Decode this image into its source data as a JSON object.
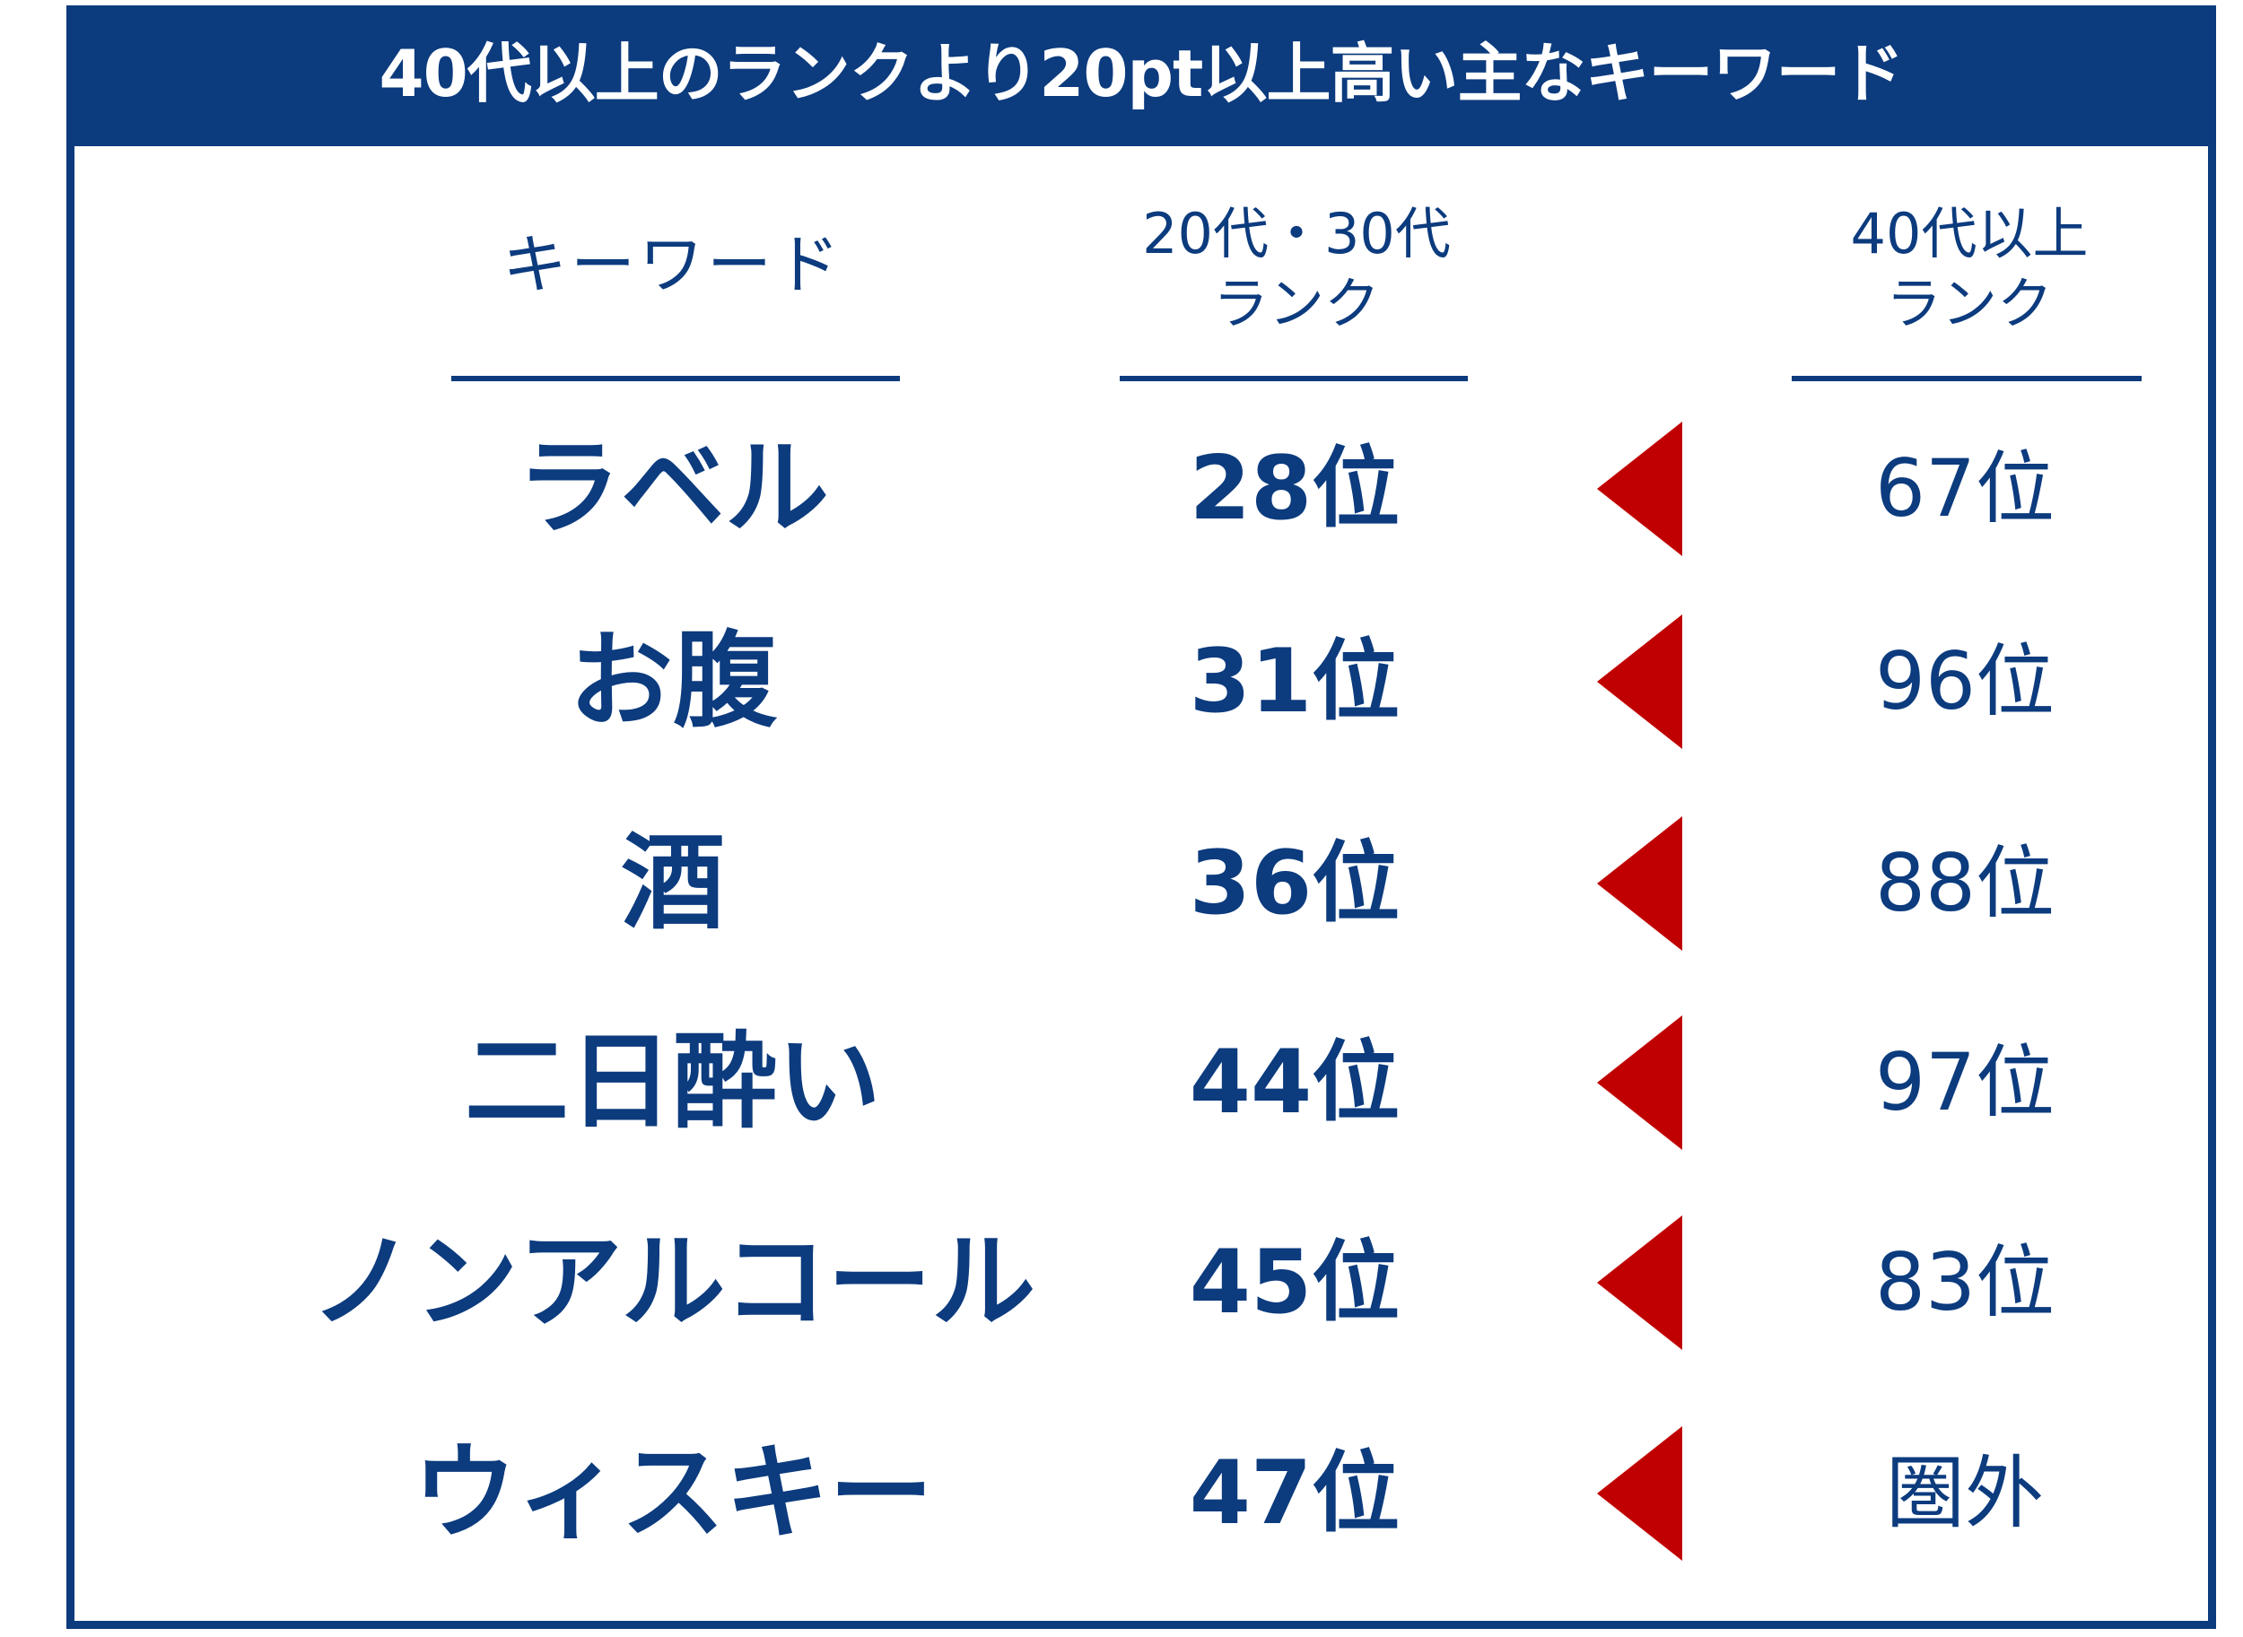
{
  "title": "40代以上のランクより20pt以上高い主なキーワード",
  "headers": {
    "keyword": "キーワード",
    "young_line1": "20代・30代",
    "young_line2": "ランク",
    "old_line1": "40代以上",
    "old_line2": "ランク"
  },
  "colors": {
    "navy": "#0c3b7e",
    "arrow_red": "#c00000"
  },
  "rows": [
    {
      "keyword": "ラベル",
      "young_rank": "28位",
      "old_rank": "67位"
    },
    {
      "keyword": "お腹",
      "young_rank": "31位",
      "old_rank": "96位"
    },
    {
      "keyword": "酒",
      "young_rank": "36位",
      "old_rank": "88位"
    },
    {
      "keyword": "二日酔い",
      "young_rank": "44位",
      "old_rank": "97位"
    },
    {
      "keyword": "ノンアルコール",
      "young_rank": "45位",
      "old_rank": "83位"
    },
    {
      "keyword": "ウィスキー",
      "young_rank": "47位",
      "old_rank": "圏外"
    }
  ]
}
